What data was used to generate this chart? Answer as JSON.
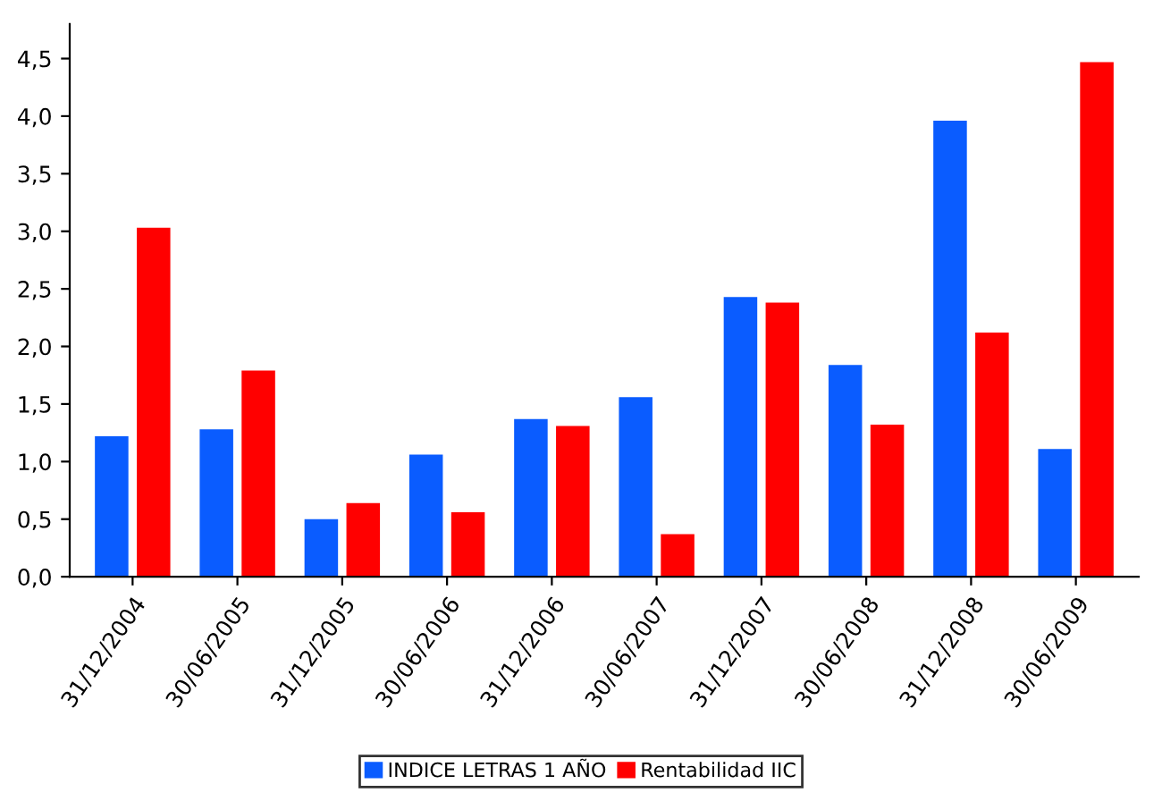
{
  "chart_data": {
    "type": "bar",
    "categories": [
      "31/12/2004",
      "30/06/2005",
      "31/12/2005",
      "30/06/2006",
      "31/12/2006",
      "30/06/2007",
      "31/12/2007",
      "30/06/2008",
      "31/12/2008",
      "30/06/2009"
    ],
    "series": [
      {
        "name": "INDICE LETRAS 1 AÑO",
        "color": "#0a5cff",
        "values": [
          1.22,
          1.28,
          0.5,
          1.06,
          1.37,
          1.56,
          2.43,
          1.84,
          3.96,
          1.11
        ]
      },
      {
        "name": "Rentabilidad IIC",
        "color": "#ff0000",
        "values": [
          3.03,
          1.79,
          0.64,
          0.56,
          1.31,
          0.37,
          2.38,
          1.32,
          2.12,
          4.47
        ]
      }
    ],
    "ylim": [
      0,
      4.8
    ],
    "yticks": [
      {
        "value": 0,
        "label": "0,0"
      },
      {
        "value": 0.5,
        "label": "0,5"
      },
      {
        "value": 1,
        "label": "1,0"
      },
      {
        "value": 1.5,
        "label": "1,5"
      },
      {
        "value": 2,
        "label": "2,0"
      },
      {
        "value": 2.5,
        "label": "2,5"
      },
      {
        "value": 3,
        "label": "3,0"
      },
      {
        "value": 3.5,
        "label": "3,5"
      },
      {
        "value": 4,
        "label": "4,0"
      },
      {
        "value": 4.5,
        "label": "4,5"
      }
    ],
    "grid": false,
    "legend": "bottom"
  }
}
